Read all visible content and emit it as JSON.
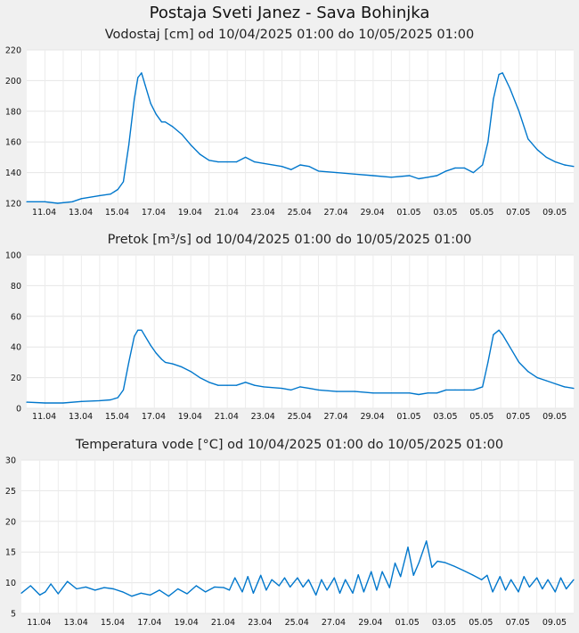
{
  "page": {
    "title": "Postaja Sveti Janez - Sava Bohinjka"
  },
  "chart_data": [
    {
      "type": "line",
      "title": "Vodostaj [cm] od 10/04/2025 01:00 do 10/05/2025 01:00",
      "ylabel": "",
      "ylim": [
        120,
        220
      ],
      "yticks": [
        "120",
        "140",
        "160",
        "180",
        "200",
        "220"
      ],
      "xlim": [
        0,
        30
      ],
      "xticks": [
        {
          "label": "11.04",
          "day": 0.96
        },
        {
          "label": "13.04",
          "day": 2.96
        },
        {
          "label": "15.04",
          "day": 4.96
        },
        {
          "label": "17.04",
          "day": 6.96
        },
        {
          "label": "19.04",
          "day": 8.96
        },
        {
          "label": "21.04",
          "day": 10.96
        },
        {
          "label": "23.04",
          "day": 12.96
        },
        {
          "label": "25.04",
          "day": 14.96
        },
        {
          "label": "27.04",
          "day": 16.96
        },
        {
          "label": "29.04",
          "day": 18.96
        },
        {
          "label": "01.05",
          "day": 20.96
        },
        {
          "label": "03.05",
          "day": 22.96
        },
        {
          "label": "05.05",
          "day": 24.96
        },
        {
          "label": "07.05",
          "day": 26.96
        },
        {
          "label": "09.05",
          "day": 28.96
        }
      ],
      "grid": true,
      "color": "#0077cc",
      "series": [
        {
          "x": [
            0,
            1,
            1.7,
            2.5,
            3,
            4,
            4.6,
            5,
            5.3,
            5.6,
            5.9,
            6.1,
            6.3,
            6.5,
            6.8,
            7.1,
            7.4,
            7.6,
            8,
            8.5,
            9,
            9.5,
            10,
            10.5,
            11,
            11.5,
            12,
            12.5,
            13,
            14,
            14.5,
            15,
            15.5,
            16,
            17,
            18,
            19,
            20,
            21,
            21.5,
            22,
            22.5,
            23,
            23.5,
            24,
            24.5,
            25,
            25.3,
            25.6,
            25.9,
            26.1,
            26.5,
            27,
            27.5,
            28,
            28.5,
            29,
            29.5,
            30
          ],
          "y": [
            121,
            121,
            120,
            121,
            123,
            125,
            126,
            129,
            134,
            158,
            188,
            202,
            205,
            197,
            185,
            178,
            173,
            173,
            170,
            165,
            158,
            152,
            148,
            147,
            147,
            147,
            150,
            147,
            146,
            144,
            142,
            145,
            144,
            141,
            140,
            139,
            138,
            137,
            138,
            136,
            137,
            138,
            141,
            143,
            143,
            140,
            145,
            160,
            188,
            204,
            205,
            195,
            180,
            162,
            155,
            150,
            147,
            145,
            144
          ]
        }
      ]
    },
    {
      "type": "line",
      "title": "Pretok [m³/s] od 10/04/2025 01:00 do 10/05/2025 01:00",
      "ylabel": "",
      "ylim": [
        0,
        100
      ],
      "yticks": [
        "0",
        "20",
        "40",
        "60",
        "80",
        "100"
      ],
      "xlim": [
        0,
        30
      ],
      "xticks": [
        {
          "label": "11.04",
          "day": 0.96
        },
        {
          "label": "13.04",
          "day": 2.96
        },
        {
          "label": "15.04",
          "day": 4.96
        },
        {
          "label": "17.04",
          "day": 6.96
        },
        {
          "label": "19.04",
          "day": 8.96
        },
        {
          "label": "21.04",
          "day": 10.96
        },
        {
          "label": "23.04",
          "day": 12.96
        },
        {
          "label": "25.04",
          "day": 14.96
        },
        {
          "label": "27.04",
          "day": 16.96
        },
        {
          "label": "29.04",
          "day": 18.96
        },
        {
          "label": "01.05",
          "day": 20.96
        },
        {
          "label": "03.05",
          "day": 22.96
        },
        {
          "label": "05.05",
          "day": 24.96
        },
        {
          "label": "07.05",
          "day": 26.96
        },
        {
          "label": "09.05",
          "day": 28.96
        }
      ],
      "grid": true,
      "color": "#0077cc",
      "series": [
        {
          "x": [
            0,
            1,
            2,
            3,
            4,
            4.6,
            5,
            5.3,
            5.6,
            5.9,
            6.1,
            6.3,
            6.5,
            6.8,
            7.1,
            7.4,
            7.6,
            8,
            8.5,
            9,
            9.5,
            10,
            10.5,
            11,
            11.5,
            12,
            12.5,
            13,
            14,
            14.5,
            15,
            15.5,
            16,
            17,
            18,
            19,
            20,
            21,
            21.5,
            22,
            22.5,
            23,
            23.5,
            24,
            24.5,
            25,
            25.3,
            25.6,
            25.9,
            26.1,
            26.5,
            27,
            27.5,
            28,
            28.5,
            29,
            29.5,
            30
          ],
          "y": [
            4,
            3.5,
            3.5,
            4.5,
            5,
            5.5,
            7,
            12,
            30,
            47,
            51,
            51,
            47,
            41,
            36,
            32,
            30,
            29,
            27,
            24,
            20,
            17,
            15,
            15,
            15,
            17,
            15,
            14,
            13,
            12,
            14,
            13,
            12,
            11,
            11,
            10,
            10,
            10,
            9,
            10,
            10,
            12,
            12,
            12,
            12,
            14,
            30,
            48,
            51,
            48,
            40,
            30,
            24,
            20,
            18,
            16,
            14,
            13
          ]
        }
      ]
    },
    {
      "type": "line",
      "title": "Temperatura vode [°C] od 10/04/2025 01:00 do 10/05/2025 01:00",
      "ylabel": "",
      "ylim": [
        5,
        30
      ],
      "yticks": [
        "5",
        "10",
        "15",
        "20",
        "25",
        "30"
      ],
      "xlim": [
        0,
        30
      ],
      "xticks": [
        {
          "label": "11.04",
          "day": 0.96
        },
        {
          "label": "13.04",
          "day": 2.96
        },
        {
          "label": "15.04",
          "day": 4.96
        },
        {
          "label": "17.04",
          "day": 6.96
        },
        {
          "label": "19.04",
          "day": 8.96
        },
        {
          "label": "21.04",
          "day": 10.96
        },
        {
          "label": "23.04",
          "day": 12.96
        },
        {
          "label": "25.04",
          "day": 14.96
        },
        {
          "label": "27.04",
          "day": 16.96
        },
        {
          "label": "29.04",
          "day": 18.96
        },
        {
          "label": "01.05",
          "day": 20.96
        },
        {
          "label": "03.05",
          "day": 22.96
        },
        {
          "label": "05.05",
          "day": 24.96
        },
        {
          "label": "07.05",
          "day": 26.96
        },
        {
          "label": "09.05",
          "day": 28.96
        }
      ],
      "grid": true,
      "color": "#0077cc",
      "series": [
        {
          "x": [
            0,
            0.5,
            1,
            1.3,
            1.6,
            2,
            2.5,
            3,
            3.5,
            4,
            4.5,
            5,
            5.5,
            6,
            6.5,
            7,
            7.5,
            8,
            8.5,
            9,
            9.5,
            10,
            10.5,
            11,
            11.3,
            11.6,
            12,
            12.3,
            12.6,
            13,
            13.3,
            13.6,
            14,
            14.3,
            14.6,
            15,
            15.3,
            15.6,
            16,
            16.3,
            16.6,
            17,
            17.3,
            17.6,
            18,
            18.3,
            18.6,
            19,
            19.3,
            19.6,
            20,
            20.3,
            20.6,
            21,
            21.3,
            21.6,
            22,
            22.3,
            22.6,
            23,
            23.5,
            24,
            24.5,
            25,
            25.3,
            25.6,
            26,
            26.3,
            26.6,
            27,
            27.3,
            27.6,
            28,
            28.3,
            28.6,
            29,
            29.3,
            29.6,
            30
          ],
          "y": [
            8.3,
            9.5,
            8.0,
            8.5,
            9.8,
            8.2,
            10.2,
            9.0,
            9.3,
            8.8,
            9.2,
            9.0,
            8.5,
            7.8,
            8.3,
            8.0,
            8.8,
            7.8,
            9.0,
            8.2,
            9.5,
            8.5,
            9.3,
            9.2,
            8.8,
            10.8,
            8.5,
            11.0,
            8.3,
            11.2,
            8.8,
            10.5,
            9.5,
            10.8,
            9.3,
            10.8,
            9.3,
            10.5,
            8.0,
            10.5,
            8.8,
            10.8,
            8.3,
            10.5,
            8.3,
            11.3,
            8.5,
            11.8,
            8.8,
            11.8,
            9.2,
            13.2,
            11.0,
            15.8,
            11.2,
            13.3,
            16.8,
            12.5,
            13.5,
            13.3,
            12.7,
            12.0,
            11.3,
            10.5,
            11.2,
            8.5,
            11.0,
            8.8,
            10.5,
            8.5,
            11.0,
            9.3,
            10.8,
            9.0,
            10.5,
            8.5,
            10.8,
            9.0,
            10.5
          ]
        }
      ]
    }
  ]
}
